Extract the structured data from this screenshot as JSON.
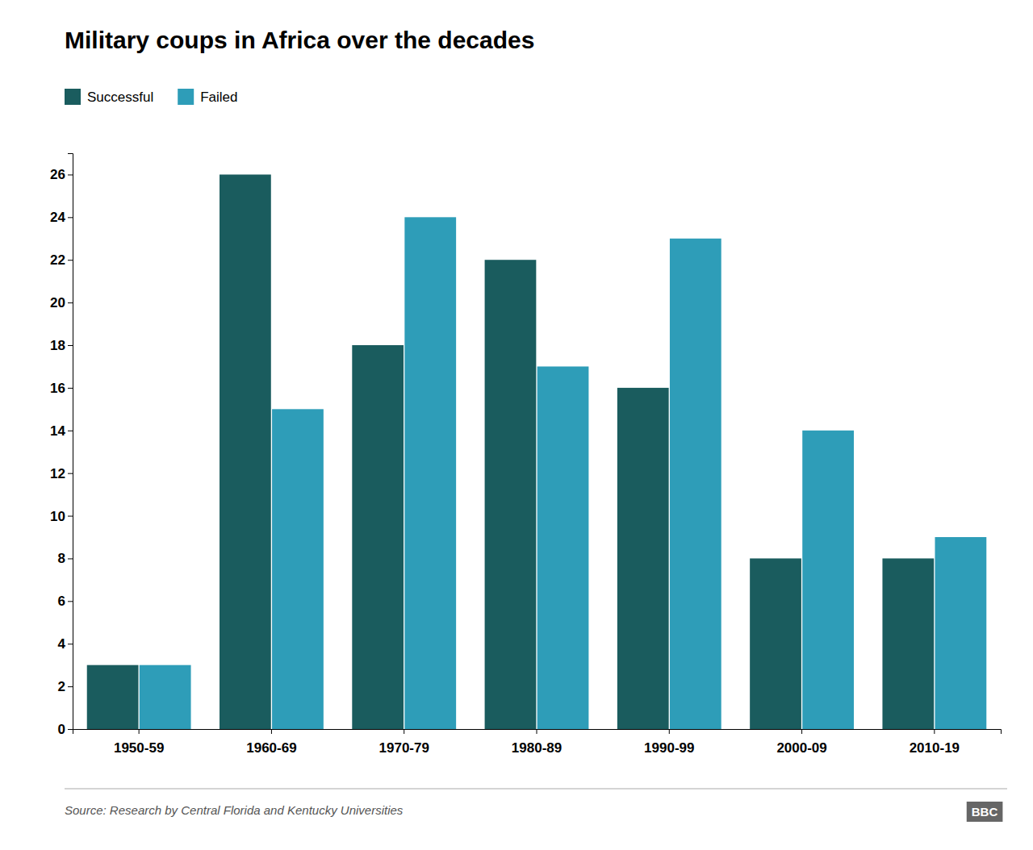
{
  "chart_data": {
    "type": "bar",
    "title": "Military coups in Africa over the decades",
    "categories": [
      "1950-59",
      "1960-69",
      "1970-79",
      "1980-89",
      "1990-99",
      "2000-09",
      "2010-19"
    ],
    "series": [
      {
        "name": "Successful",
        "color": "#1a5c5e",
        "values": [
          3,
          26,
          18,
          22,
          16,
          8,
          8
        ]
      },
      {
        "name": "Failed",
        "color": "#2e9db8",
        "values": [
          3,
          15,
          24,
          17,
          23,
          14,
          9
        ]
      }
    ],
    "ylim": [
      0,
      27
    ],
    "yticks": [
      0,
      2,
      4,
      6,
      8,
      10,
      12,
      14,
      16,
      18,
      20,
      22,
      24,
      26
    ],
    "grid": false,
    "legend": "top-left",
    "annotations": [
      "Source: Research by Central Florida and Kentucky Universities",
      "BBC"
    ]
  }
}
